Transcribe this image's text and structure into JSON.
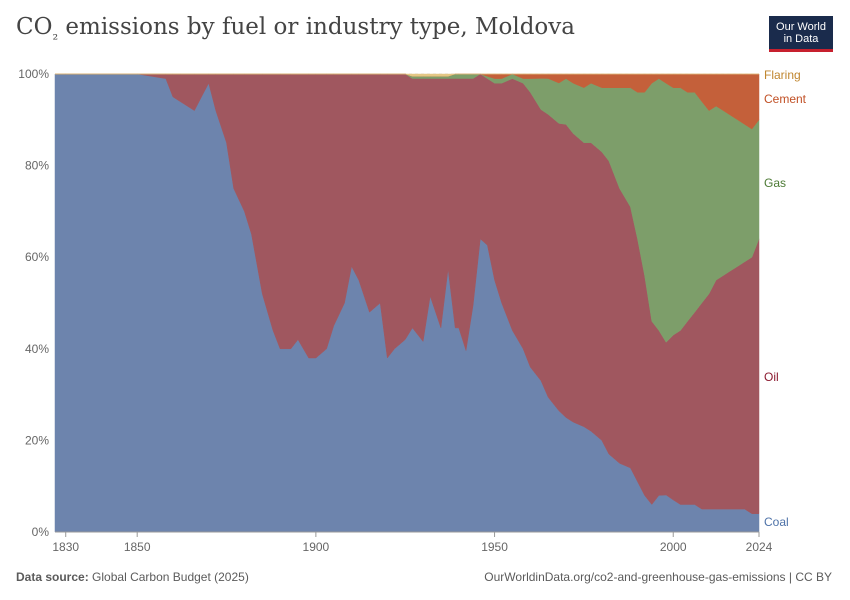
{
  "chart_data": {
    "type": "area",
    "stacked": "percent",
    "title_main": "CO",
    "title_sub": "₂",
    "title_rest": " emissions by fuel or industry type, Moldova",
    "x_ticks": [
      1830,
      1850,
      1900,
      1950,
      2000,
      2024
    ],
    "y_ticks": [
      "0%",
      "20%",
      "40%",
      "60%",
      "80%",
      "100%"
    ],
    "ylim": [
      0,
      100
    ],
    "xlim": [
      1827,
      2024
    ],
    "x": [
      1827,
      1830,
      1850,
      1858,
      1860,
      1862,
      1866,
      1868,
      1870,
      1872,
      1875,
      1877,
      1880,
      1882,
      1885,
      1888,
      1890,
      1893,
      1895,
      1898,
      1900,
      1903,
      1905,
      1908,
      1910,
      1912,
      1915,
      1918,
      1920,
      1922,
      1925,
      1927,
      1930,
      1932,
      1935,
      1937,
      1939,
      1940,
      1942,
      1944,
      1946,
      1948,
      1950,
      1952,
      1955,
      1958,
      1960,
      1963,
      1965,
      1968,
      1970,
      1972,
      1975,
      1977,
      1980,
      1982,
      1985,
      1988,
      1990,
      1992,
      1994,
      1996,
      1998,
      2000,
      2002,
      2004,
      2006,
      2008,
      2010,
      2012,
      2014,
      2016,
      2018,
      2020,
      2022,
      2024
    ],
    "series": [
      {
        "name": "Coal",
        "color": "#6d84ad",
        "label_color": "#4e72a8",
        "values": [
          100,
          100,
          100,
          99,
          95,
          94,
          92,
          95,
          98,
          92,
          85,
          75,
          70,
          65,
          52,
          44,
          40,
          40,
          42,
          38,
          38,
          40,
          45,
          50,
          58,
          55,
          48,
          50,
          38,
          40,
          42,
          45,
          42,
          52,
          45,
          58,
          45,
          45,
          40,
          50,
          64,
          62,
          55,
          50,
          44,
          40,
          36,
          34,
          30,
          27,
          25,
          24,
          23,
          22,
          20,
          17,
          15,
          14,
          11,
          8,
          6,
          8,
          8,
          7,
          6,
          6,
          6,
          5,
          5,
          5,
          5,
          5,
          5,
          5,
          4,
          4
        ]
      },
      {
        "name": "Oil",
        "color": "#a0575f",
        "label_color": "#8b1a2f",
        "values": [
          0,
          0,
          0,
          1,
          5,
          6,
          8,
          5,
          2,
          8,
          15,
          25,
          30,
          35,
          48,
          56,
          60,
          60,
          58,
          62,
          62,
          60,
          55,
          50,
          42,
          45,
          52,
          50,
          62,
          60,
          58,
          55,
          58,
          48,
          55,
          42,
          55,
          55,
          60,
          50,
          36,
          36,
          43,
          48,
          55,
          58,
          60,
          61,
          63,
          64,
          64,
          63,
          62,
          63,
          63,
          64,
          60,
          57,
          53,
          48,
          40,
          36,
          33,
          36,
          38,
          40,
          42,
          45,
          47,
          50,
          51,
          52,
          53,
          54,
          56,
          60
        ]
      },
      {
        "name": "Gas",
        "color": "#7d9e6a",
        "label_color": "#4c7a34",
        "values": [
          0,
          0,
          0,
          0,
          0,
          0,
          0,
          0,
          0,
          0,
          0,
          0,
          0,
          0,
          0,
          0,
          0,
          0,
          0,
          0,
          0,
          0,
          0,
          0,
          0,
          0,
          0,
          0,
          0,
          0,
          0,
          0.5,
          0.5,
          0.5,
          0.5,
          0.5,
          1,
          1,
          1,
          1,
          0,
          0.5,
          1,
          1,
          1,
          1,
          3,
          7,
          8,
          9,
          10,
          11,
          12,
          13,
          14,
          16,
          22,
          26,
          32,
          40,
          52,
          55,
          56,
          54,
          53,
          50,
          48,
          44,
          40,
          38,
          36,
          34,
          32,
          30,
          28,
          26
        ]
      },
      {
        "name": "Cement",
        "color": "#c4603a",
        "label_color": "#c15025",
        "values": [
          0,
          0,
          0,
          0,
          0,
          0,
          0,
          0,
          0,
          0,
          0,
          0,
          0,
          0,
          0,
          0,
          0,
          0,
          0,
          0,
          0,
          0,
          0,
          0,
          0,
          0,
          0,
          0,
          0,
          0,
          0,
          0,
          0,
          0,
          0,
          0,
          0,
          0,
          0,
          0,
          0,
          0.5,
          1,
          1,
          0,
          1,
          1,
          1,
          1,
          2,
          1,
          2,
          3,
          2,
          3,
          3,
          3,
          3,
          4,
          4,
          2,
          1,
          2,
          3,
          3,
          4,
          4,
          6,
          8,
          7,
          8,
          9,
          10,
          11,
          12,
          10
        ]
      },
      {
        "name": "Flaring",
        "color": "#e4c784",
        "label_color": "#c0862f",
        "values": [
          0,
          0,
          0,
          0,
          0,
          0,
          0,
          0,
          0,
          0,
          0,
          0,
          0,
          0,
          0,
          0,
          0,
          0,
          0,
          0,
          0,
          0,
          0,
          0,
          0,
          0,
          0,
          0,
          0,
          0,
          0,
          0.5,
          0.5,
          0.5,
          0.5,
          0.5,
          0,
          0,
          0,
          0,
          0,
          0,
          0,
          0,
          0,
          0,
          0,
          0,
          0,
          0,
          0,
          0,
          0,
          0,
          0,
          0,
          0,
          0,
          0,
          0,
          0,
          0,
          0,
          0,
          0,
          0,
          0,
          0,
          0,
          0,
          0,
          0,
          0,
          0,
          0,
          0
        ]
      }
    ],
    "legend_placement": "right"
  },
  "logo": {
    "line1": "Our World",
    "line2": "in Data"
  },
  "footer": {
    "source_label": "Data source:",
    "source_value": "Global Carbon Budget (2025)",
    "url": "OurWorldinData.org/co2-and-greenhouse-gas-emissions | CC BY"
  }
}
